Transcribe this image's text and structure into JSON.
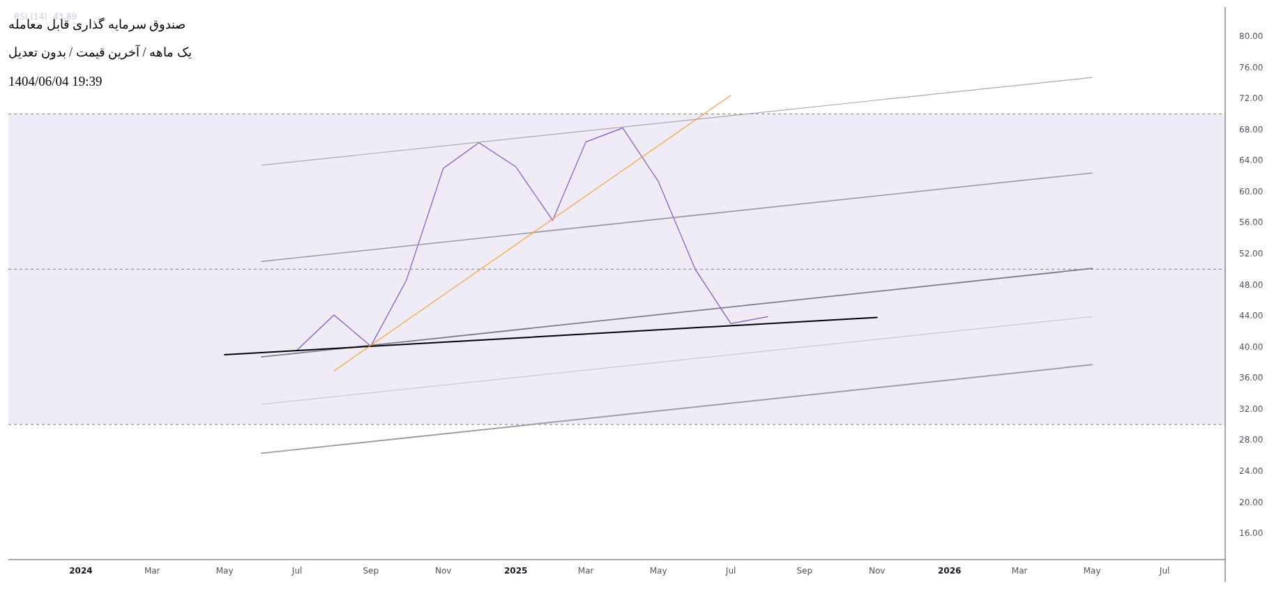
{
  "chart_data": {
    "type": "line",
    "title": "صندوق سرمایه گذاری قابل معامله",
    "subtitle": "یک ماهه / آخرین قیمت / بدون تعدیل",
    "annotations": [
      "1404/06/04 19:39",
      "43.89"
    ],
    "legend": "top left",
    "grid": false,
    "line_style": "solid",
    "marker": "none",
    "series": [
      {
        "name": "RSI (14)",
        "color": "#7e57c2",
        "x": [
          "2024-07",
          "2024-08",
          "2024-09",
          "2024-10",
          "2024-11",
          "2024-12",
          "2025-01",
          "2025-02",
          "2025-03",
          "2025-04",
          "2025-05",
          "2025-06",
          "2025-07",
          "2025-08"
        ],
        "values": [
          39.6,
          44.1,
          40.1,
          48.6,
          63.0,
          66.3,
          63.2,
          56.3,
          66.4,
          68.2,
          61.3,
          50.0,
          43.0,
          43.89
        ]
      },
      {
        "color": "#aaa6b0",
        "x": [
          "2024-06",
          "2026-05"
        ],
        "values": [
          63.4,
          74.7
        ]
      },
      {
        "color": "#9a95a2",
        "x": [
          "2024-06",
          "2026-05"
        ],
        "values": [
          51.0,
          62.4
        ]
      },
      {
        "color": "#7f7b88",
        "x": [
          "2024-06",
          "2026-05"
        ],
        "values": [
          38.7,
          50.1
        ]
      },
      {
        "color": "#cdc4da",
        "x": [
          "2024-06",
          "2026-05"
        ],
        "values": [
          32.6,
          43.9
        ]
      },
      {
        "color": "#a09ca6",
        "x": [
          "2024-06",
          "2026-05"
        ],
        "values": [
          26.3,
          37.7
        ]
      },
      {
        "color": "#000000",
        "x": [
          "2024-05",
          "2025-11"
        ],
        "values": [
          39.0,
          43.8
        ]
      },
      {
        "color": "#f7a23a",
        "x": [
          "2024-08",
          "2025-07"
        ],
        "values": [
          36.9,
          72.4
        ]
      }
    ],
    "ref_lines": [
      {
        "axis": "y",
        "value": 70,
        "color": "#787b86",
        "line_style": "dashed"
      },
      {
        "axis": "y",
        "value": 50,
        "color": "#787b86",
        "line_style": "dashed"
      },
      {
        "axis": "y",
        "value": 30,
        "color": "#787b86",
        "line_style": "dashed"
      }
    ],
    "bands": [
      {
        "axis": "y",
        "from": 30,
        "to": 70,
        "color": "#efebf7"
      }
    ],
    "xlim": [
      "2023-11-01",
      "2026-08-21"
    ],
    "xticks": [
      {
        "value": "2024-01",
        "label": "2024"
      },
      {
        "value": "2024-03",
        "label": "Mar"
      },
      {
        "value": "2024-05",
        "label": "May"
      },
      {
        "value": "2024-07",
        "label": "Jul"
      },
      {
        "value": "2024-09",
        "label": "Sep"
      },
      {
        "value": "2024-11",
        "label": "Nov"
      },
      {
        "value": "2025-01",
        "label": "2025"
      },
      {
        "value": "2025-03",
        "label": "Mar"
      },
      {
        "value": "2025-05",
        "label": "May"
      },
      {
        "value": "2025-07",
        "label": "Jul"
      },
      {
        "value": "2025-09",
        "label": "Sep"
      },
      {
        "value": "2025-11",
        "label": "Nov"
      },
      {
        "value": "2026-01",
        "label": "2026"
      },
      {
        "value": "2026-03",
        "label": "Mar"
      },
      {
        "value": "2026-05",
        "label": "May"
      },
      {
        "value": "2026-07",
        "label": "Jul"
      }
    ],
    "ylim": [
      12.6,
      83.6
    ],
    "yticks": [
      {
        "value": 80,
        "label": "80.00"
      },
      {
        "value": 76,
        "label": "76.00"
      },
      {
        "value": 72,
        "label": "72.00"
      },
      {
        "value": 68,
        "label": "68.00"
      },
      {
        "value": 64,
        "label": "64.00"
      },
      {
        "value": 60,
        "label": "60.00"
      },
      {
        "value": 56,
        "label": "56.00"
      },
      {
        "value": 52,
        "label": "52.00"
      },
      {
        "value": 48,
        "label": "48.00"
      },
      {
        "value": 44,
        "label": "44.00"
      },
      {
        "value": 40,
        "label": "40.00"
      },
      {
        "value": 36,
        "label": "36.00"
      },
      {
        "value": 32,
        "label": "32.00"
      },
      {
        "value": 28,
        "label": "28.00"
      },
      {
        "value": 24,
        "label": "24.00"
      },
      {
        "value": 20,
        "label": "20.00"
      },
      {
        "value": 16,
        "label": "16.00"
      }
    ]
  }
}
